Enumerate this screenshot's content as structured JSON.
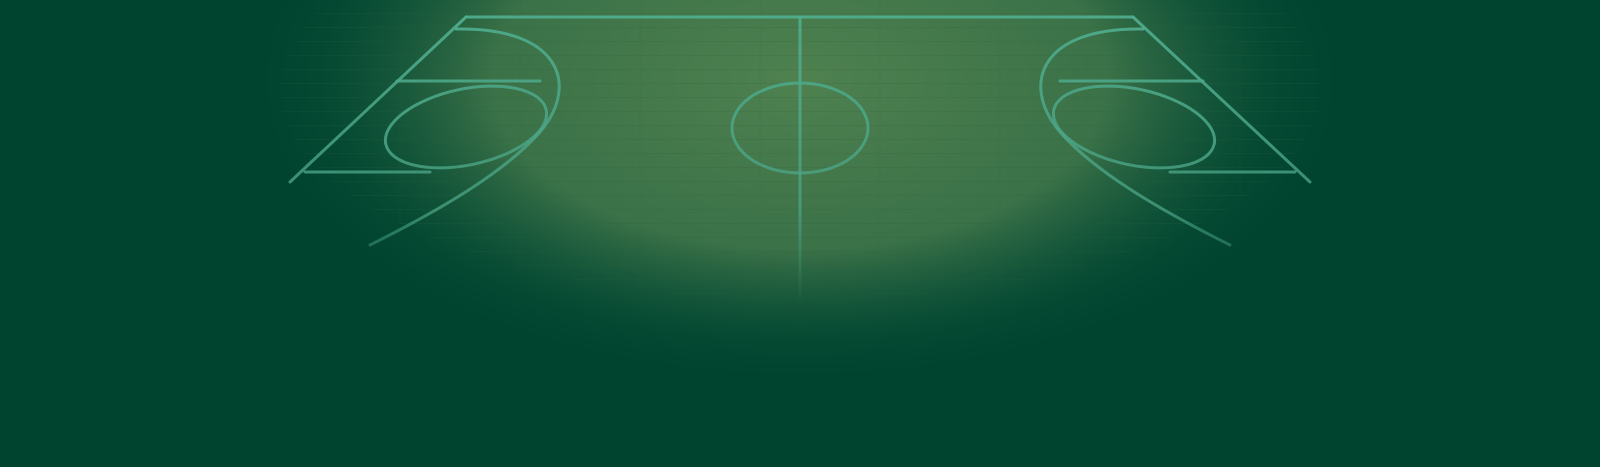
{
  "hero": {
    "background_color": "#00432f",
    "court_floor_color": "#4d7f4f",
    "court_line_color": "#4aa386",
    "court_icon": "basketball-court"
  }
}
